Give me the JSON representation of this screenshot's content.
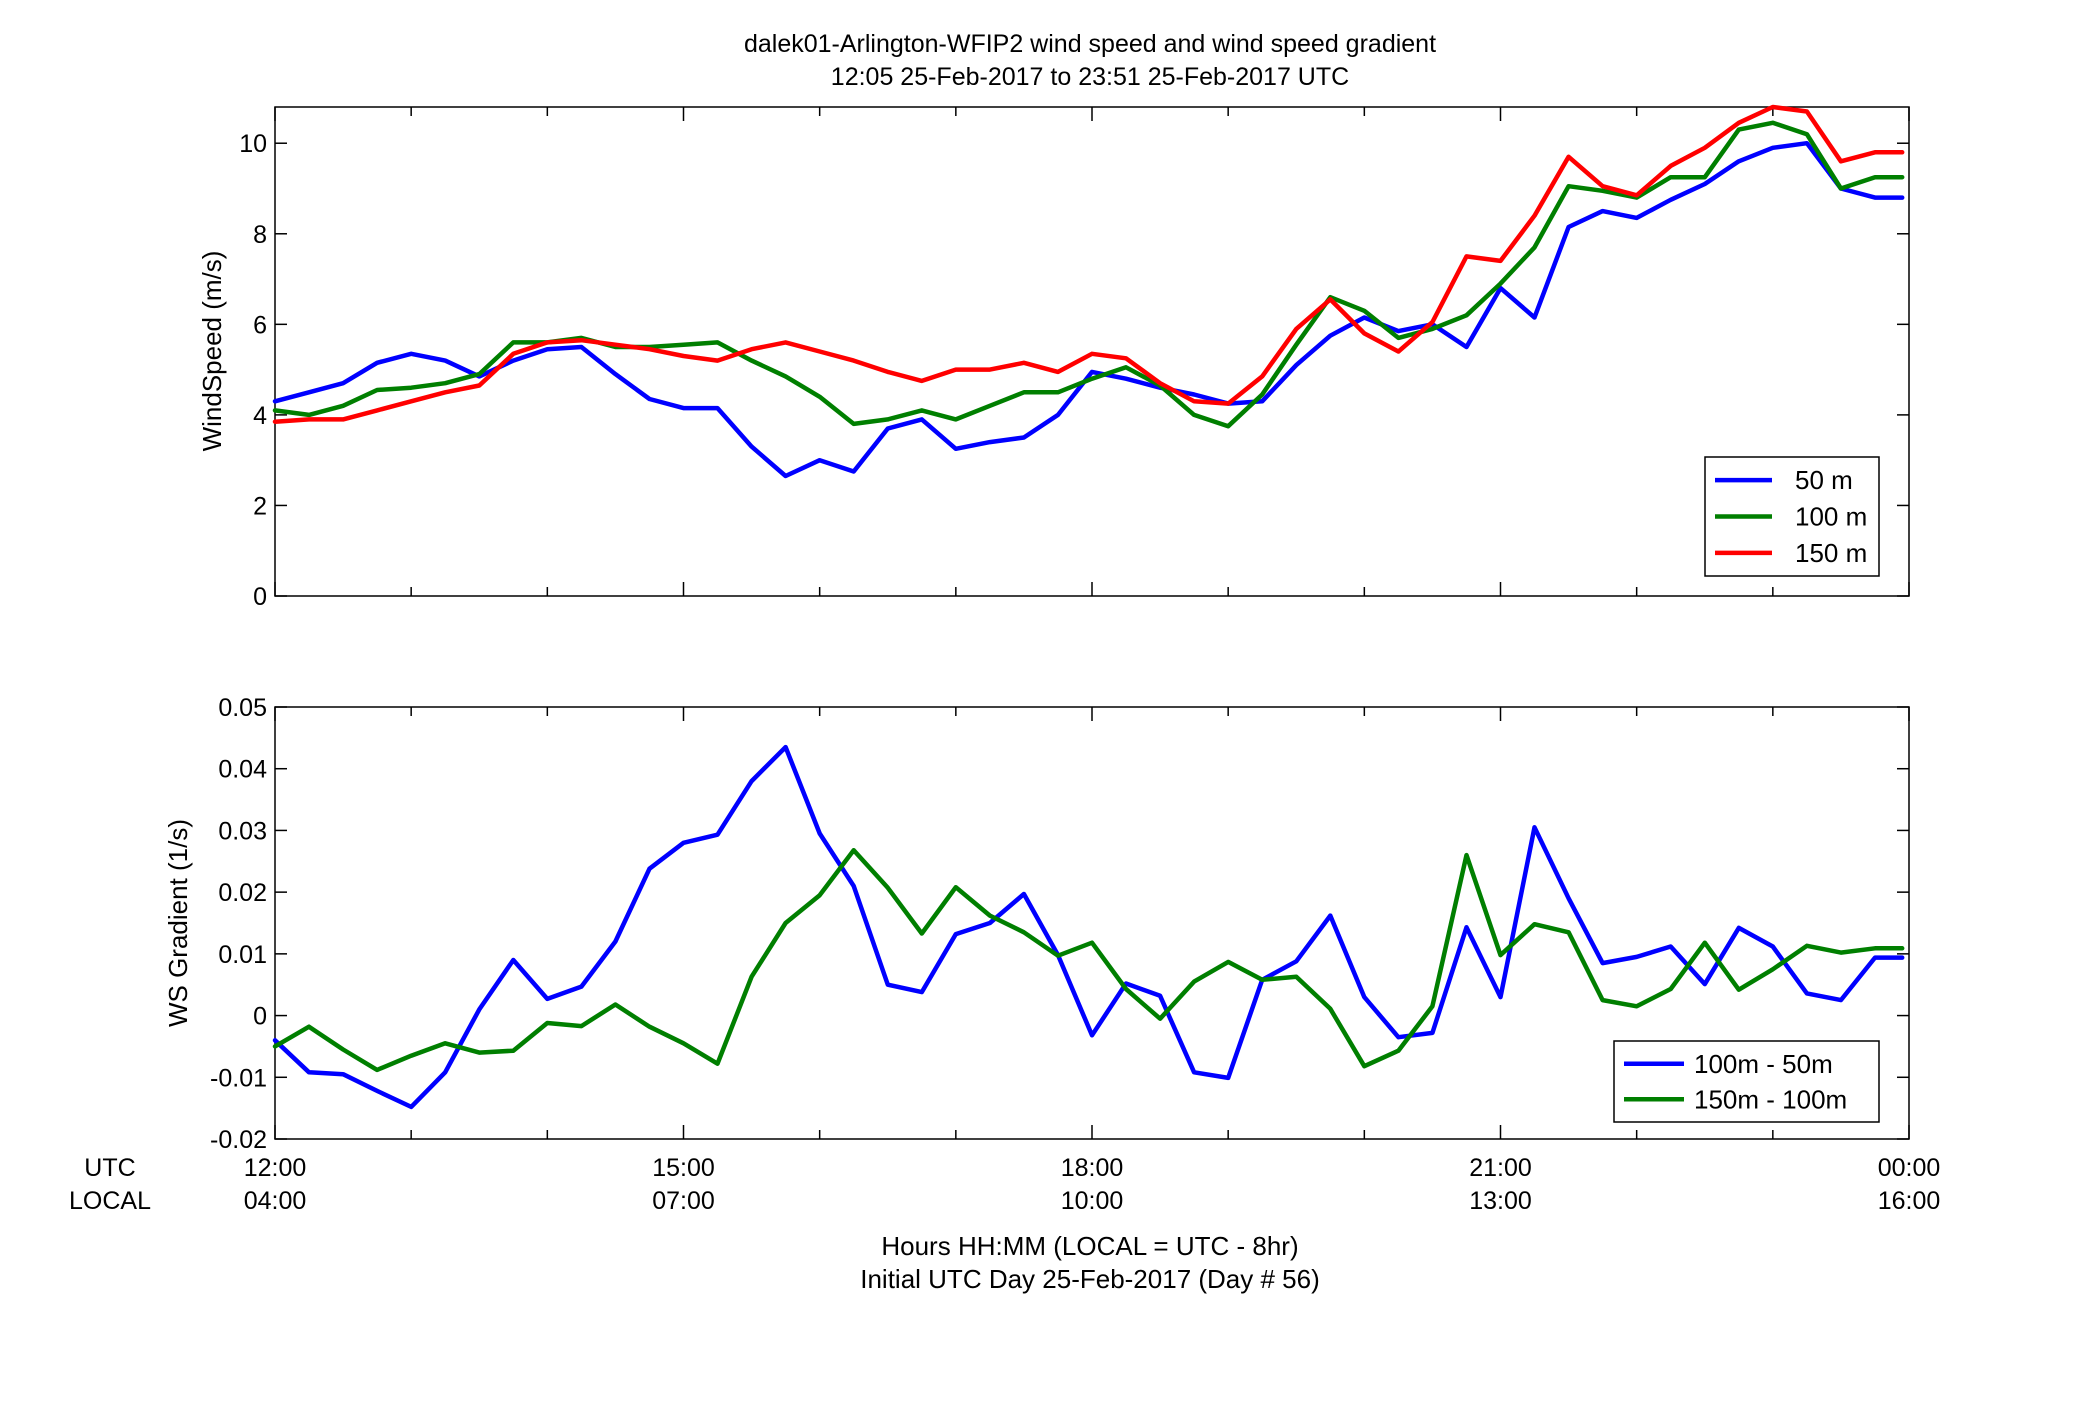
{
  "figure": {
    "title": "dalek01-Arlington-WFIP2  wind speed and wind speed gradient",
    "subtitle": "12:05 25-Feb-2017 to 23:51 25-Feb-2017  UTC",
    "xlabel_line1": "Hours HH:MM  (LOCAL = UTC - 8hr)",
    "xlabel_line2": "Initial UTC Day 25-Feb-2017 (Day # 56)",
    "utc_row_label": "UTC",
    "local_row_label": "LOCAL",
    "x_ticks": [
      {
        "h": 12,
        "utc": "12:00",
        "local": "04:00"
      },
      {
        "h": 15,
        "utc": "15:00",
        "local": "07:00"
      },
      {
        "h": 18,
        "utc": "18:00",
        "local": "10:00"
      },
      {
        "h": 21,
        "utc": "21:00",
        "local": "13:00"
      },
      {
        "h": 24,
        "utc": "00:00",
        "local": "16:00"
      }
    ]
  },
  "chart_data": [
    {
      "type": "line",
      "ylabel": "WindSpeed (m/s)",
      "xlim": [
        12,
        24
      ],
      "ylim": [
        0,
        10.8
      ],
      "yticks": [
        0,
        2,
        4,
        6,
        8,
        10
      ],
      "grid": false,
      "legend_position": "bottom-right",
      "x": [
        12.0,
        12.25,
        12.5,
        12.75,
        13.0,
        13.25,
        13.5,
        13.75,
        14.0,
        14.25,
        14.5,
        14.75,
        15.0,
        15.25,
        15.5,
        15.75,
        16.0,
        16.25,
        16.5,
        16.75,
        17.0,
        17.25,
        17.5,
        17.75,
        18.0,
        18.25,
        18.5,
        18.75,
        19.0,
        19.25,
        19.5,
        19.75,
        20.0,
        20.25,
        20.5,
        20.75,
        21.0,
        21.25,
        21.5,
        21.75,
        22.0,
        22.25,
        22.5,
        22.75,
        23.0,
        23.25,
        23.5,
        23.75,
        23.95
      ],
      "series": [
        {
          "name": "50 m",
          "color": "#0000ff",
          "values": [
            4.3,
            4.5,
            4.7,
            5.15,
            5.35,
            5.2,
            4.85,
            5.2,
            5.45,
            5.5,
            4.9,
            4.35,
            4.15,
            4.15,
            3.3,
            2.65,
            3.0,
            2.75,
            3.7,
            3.9,
            3.25,
            3.4,
            3.5,
            4.0,
            4.95,
            4.8,
            4.6,
            4.45,
            4.25,
            4.3,
            5.1,
            5.75,
            6.15,
            5.85,
            6.0,
            5.5,
            6.8,
            6.15,
            8.15,
            8.5,
            8.35,
            8.75,
            9.1,
            9.6,
            9.9,
            10.0,
            9.0,
            8.8,
            8.8
          ]
        },
        {
          "name": "100 m",
          "color": "#007f00",
          "values": [
            4.1,
            4.0,
            4.2,
            4.55,
            4.6,
            4.7,
            4.9,
            5.6,
            5.6,
            5.7,
            5.5,
            5.5,
            5.55,
            5.6,
            5.2,
            4.85,
            4.4,
            3.8,
            3.9,
            4.1,
            3.9,
            4.2,
            4.5,
            4.5,
            4.8,
            5.05,
            4.65,
            4.0,
            3.75,
            4.45,
            5.55,
            6.6,
            6.3,
            5.7,
            5.9,
            6.2,
            6.9,
            7.7,
            9.05,
            8.95,
            8.8,
            9.25,
            9.25,
            10.3,
            10.45,
            10.2,
            9.0,
            9.25,
            9.25
          ]
        },
        {
          "name": "150 m",
          "color": "#ff0000",
          "values": [
            3.85,
            3.9,
            3.9,
            4.1,
            4.3,
            4.5,
            4.65,
            5.35,
            5.6,
            5.65,
            5.55,
            5.45,
            5.3,
            5.2,
            5.45,
            5.6,
            5.4,
            5.2,
            4.95,
            4.75,
            5.0,
            5.0,
            5.15,
            4.95,
            5.35,
            5.25,
            4.7,
            4.3,
            4.25,
            4.85,
            5.9,
            6.55,
            5.8,
            5.4,
            6.05,
            7.5,
            7.4,
            8.4,
            9.7,
            9.05,
            8.85,
            9.5,
            9.9,
            10.45,
            10.8,
            10.7,
            9.6,
            9.8,
            9.8
          ]
        }
      ]
    },
    {
      "type": "line",
      "ylabel": "WS Gradient (1/s)",
      "xlim": [
        12,
        24
      ],
      "ylim": [
        -0.02,
        0.05
      ],
      "yticks": [
        -0.02,
        -0.01,
        0,
        0.01,
        0.02,
        0.03,
        0.04,
        0.05
      ],
      "ytick_labels": [
        "-0.02",
        "-0.01",
        "0",
        "0.01",
        "0.02",
        "0.03",
        "0.04",
        "0.05"
      ],
      "grid": false,
      "legend_position": "bottom-right",
      "x": [
        12.0,
        12.25,
        12.5,
        12.75,
        13.0,
        13.25,
        13.5,
        13.75,
        14.0,
        14.25,
        14.5,
        14.75,
        15.0,
        15.25,
        15.5,
        15.75,
        16.0,
        16.25,
        16.5,
        16.75,
        17.0,
        17.25,
        17.5,
        17.75,
        18.0,
        18.25,
        18.5,
        18.75,
        19.0,
        19.25,
        19.5,
        19.75,
        20.0,
        20.25,
        20.5,
        20.75,
        21.0,
        21.25,
        21.5,
        21.75,
        22.0,
        22.25,
        22.5,
        22.75,
        23.0,
        23.25,
        23.5,
        23.75,
        23.95
      ],
      "series": [
        {
          "name": "100m - 50m",
          "color": "#0000ff",
          "values": [
            -0.004,
            -0.0092,
            -0.0095,
            -0.0122,
            -0.0148,
            -0.0092,
            0.001,
            0.009,
            0.0027,
            0.0047,
            0.012,
            0.0238,
            0.028,
            0.0293,
            0.038,
            0.0435,
            0.0295,
            0.021,
            0.005,
            0.0038,
            0.0132,
            0.015,
            0.0197,
            0.0098,
            -0.0032,
            0.0052,
            0.0032,
            -0.0092,
            -0.0101,
            0.0058,
            0.0088,
            0.0162,
            0.003,
            -0.0035,
            -0.0028,
            0.0143,
            0.003,
            0.0305,
            0.019,
            0.0085,
            0.0095,
            0.0112,
            0.0051,
            0.0142,
            0.0112,
            0.0036,
            0.0025,
            0.0094,
            0.0094
          ]
        },
        {
          "name": "150m - 100m",
          "color": "#007f00",
          "values": [
            -0.005,
            -0.0018,
            -0.0055,
            -0.0088,
            -0.0065,
            -0.0045,
            -0.006,
            -0.0057,
            -0.0012,
            -0.0017,
            0.0018,
            -0.0018,
            -0.0045,
            -0.0078,
            0.0063,
            0.015,
            0.0195,
            0.0268,
            0.0207,
            0.0133,
            0.0208,
            0.0162,
            0.0135,
            0.0097,
            0.0118,
            0.0043,
            -0.0005,
            0.0055,
            0.0087,
            0.0058,
            0.0063,
            0.0011,
            -0.0082,
            -0.0057,
            0.0015,
            0.026,
            0.0098,
            0.0148,
            0.0135,
            0.0025,
            0.0015,
            0.0043,
            0.0118,
            0.0042,
            0.0075,
            0.0113,
            0.0102,
            0.0109,
            0.0109
          ]
        }
      ]
    }
  ]
}
